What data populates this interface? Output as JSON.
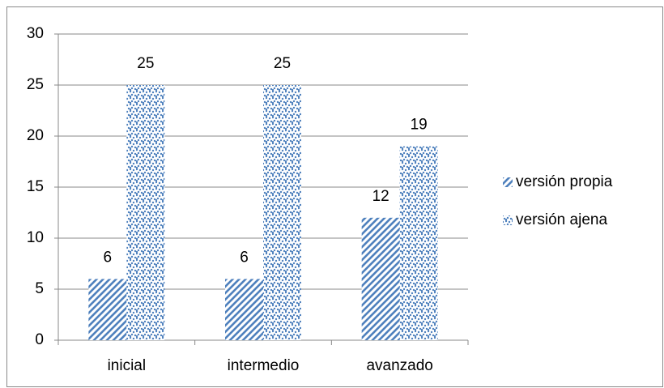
{
  "chart_data": {
    "type": "bar",
    "categories": [
      "inicial",
      "intermedio",
      "avanzado"
    ],
    "series": [
      {
        "name": "versión propia",
        "color": "#4f81bd",
        "pattern": "diagonal",
        "values": [
          6,
          6,
          12
        ]
      },
      {
        "name": "versión ajena",
        "color": "#4f81bd",
        "pattern": "dots",
        "values": [
          25,
          25,
          19
        ]
      }
    ],
    "ylim": [
      0,
      30
    ],
    "yticks": [
      0,
      5,
      10,
      15,
      20,
      25,
      30
    ],
    "grid": true,
    "legend": "right"
  }
}
